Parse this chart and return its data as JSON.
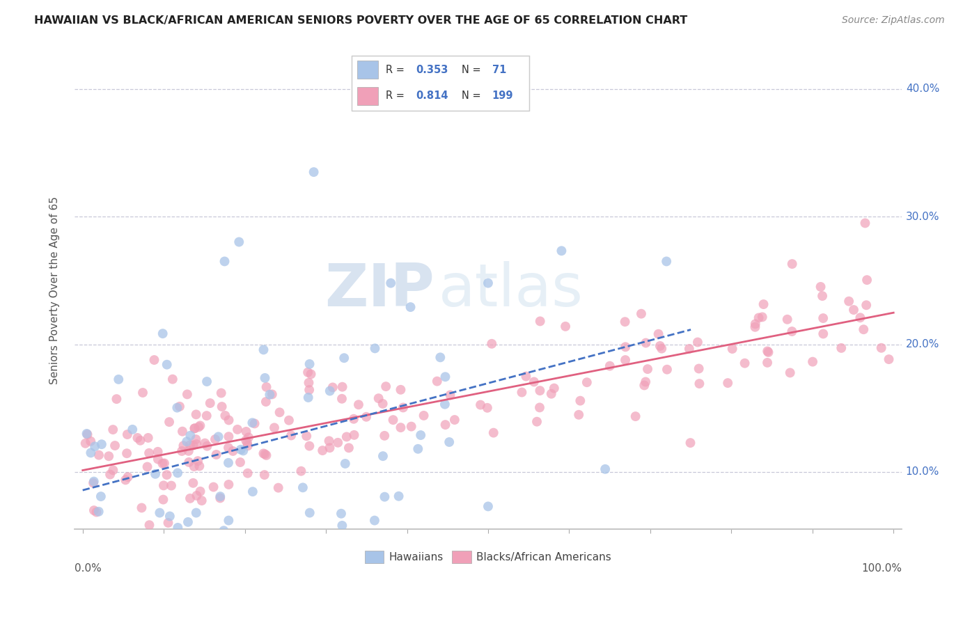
{
  "title": "HAWAIIAN VS BLACK/AFRICAN AMERICAN SENIORS POVERTY OVER THE AGE OF 65 CORRELATION CHART",
  "source": "Source: ZipAtlas.com",
  "ylabel": "Seniors Poverty Over the Age of 65",
  "xlim": [
    0,
    1.0
  ],
  "ylim": [
    0.055,
    0.43
  ],
  "yticks": [
    0.1,
    0.2,
    0.3,
    0.4
  ],
  "ytick_labels": [
    "10.0%",
    "20.0%",
    "30.0%",
    "40.0%"
  ],
  "color_hawaiian": "#a8c4e8",
  "color_black": "#f0a0b8",
  "color_hawaiian_line": "#4472c4",
  "color_black_line": "#e06080",
  "background_color": "#ffffff",
  "grid_color": "#c8c8d8",
  "watermark_zip": "#b8cce4",
  "watermark_atlas": "#c8d8e8"
}
